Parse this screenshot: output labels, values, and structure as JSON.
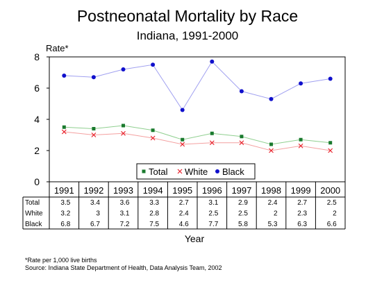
{
  "chart_data": {
    "type": "line",
    "title": "Postneonatal Mortality by Race",
    "subtitle": "Indiana, 1991-2000",
    "ylabel": "Rate*",
    "xlabel": "Year",
    "ylim": [
      0,
      8
    ],
    "yticks": [
      "0",
      "2",
      "4",
      "6",
      "8"
    ],
    "categories": [
      "1991",
      "1992",
      "1993",
      "1994",
      "1995",
      "1996",
      "1997",
      "1998",
      "1999",
      "2000"
    ],
    "series": [
      {
        "name": "Total",
        "values": [
          3.5,
          3.4,
          3.6,
          3.3,
          2.7,
          3.1,
          2.9,
          2.4,
          2.7,
          2.5
        ],
        "table_values": [
          "3.5",
          "3.4",
          "3.6",
          "3.3",
          "2.7",
          "3.1",
          "2.9",
          "2.4",
          "2.7",
          "2.5"
        ],
        "color": "#1a7a2e",
        "line_color": "#8fcf8f",
        "marker": "square"
      },
      {
        "name": "White",
        "values": [
          3.2,
          3.0,
          3.1,
          2.8,
          2.4,
          2.5,
          2.5,
          2.0,
          2.3,
          2.0
        ],
        "table_values": [
          "3.2",
          "3",
          "3.1",
          "2.8",
          "2.4",
          "2.5",
          "2.5",
          "2",
          "2.3",
          "2"
        ],
        "color": "#e8202a",
        "line_color": "#f4a0a0",
        "marker": "x"
      },
      {
        "name": "Black",
        "values": [
          6.8,
          6.7,
          7.2,
          7.5,
          4.6,
          7.7,
          5.8,
          5.3,
          6.3,
          6.6
        ],
        "table_values": [
          "6.8",
          "6.7",
          "7.2",
          "7.5",
          "4.6",
          "7.7",
          "5.8",
          "5.3",
          "6.3",
          "6.6"
        ],
        "color": "#1010cc",
        "line_color": "#a0a0f0",
        "marker": "circle"
      }
    ],
    "legend_position": "bottom-center",
    "grid": false
  },
  "footnote": "*Rate per 1,000 live births",
  "source": "Source:  Indiana State Department of Health, Data Analysis Team, 2002"
}
